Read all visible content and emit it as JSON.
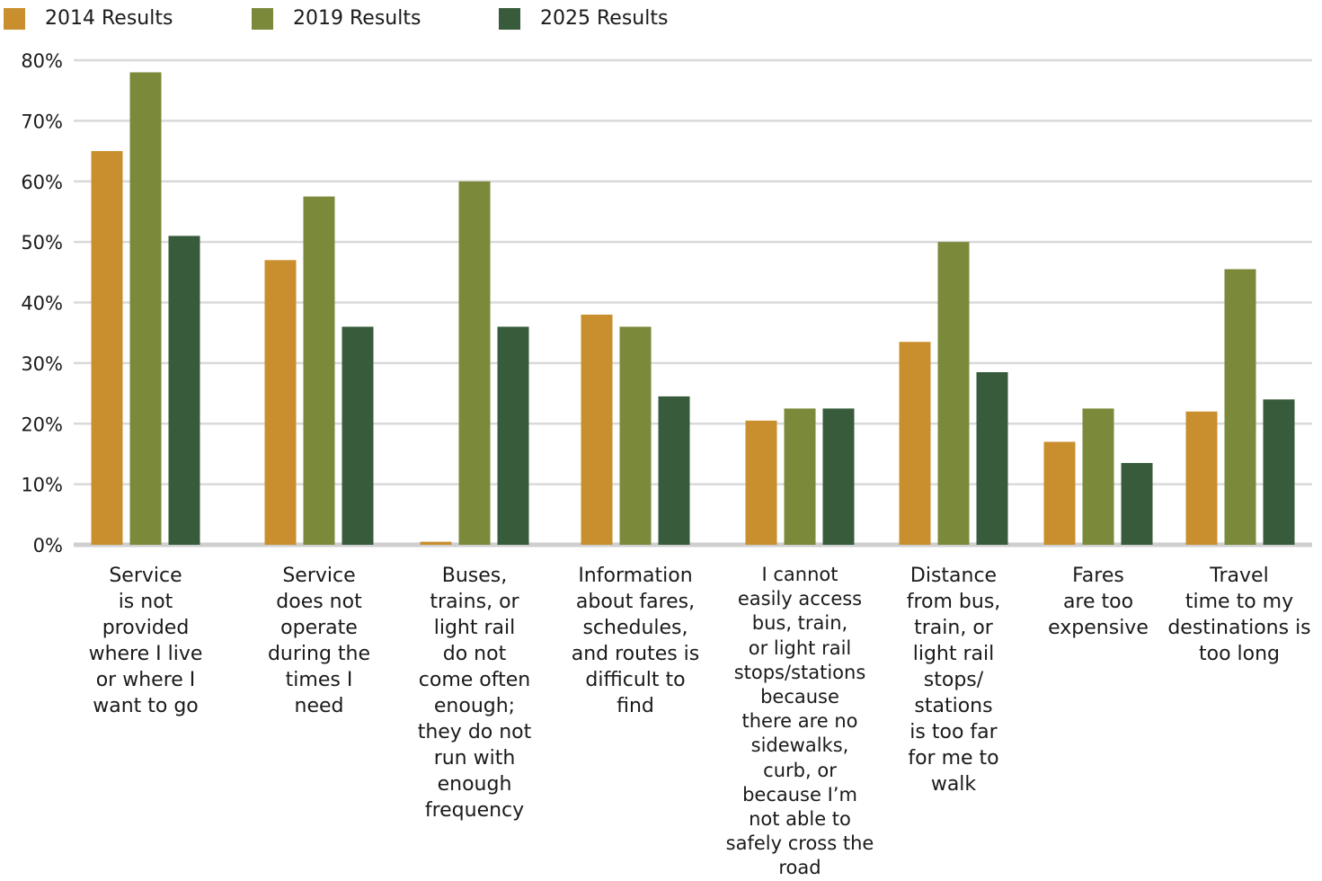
{
  "chart_data": {
    "type": "bar",
    "title": "",
    "xlabel": "",
    "ylabel": "",
    "ylim": [
      0,
      80
    ],
    "yticks": [
      "0%",
      "10%",
      "20%",
      "30%",
      "40%",
      "50%",
      "60%",
      "70%",
      "80%"
    ],
    "grid": true,
    "legend_position": "top-left",
    "categories": [
      "Service\nis not\nprovided\nwhere I live\nor where I\nwant to go",
      "Service\ndoes not\noperate\nduring the\ntimes I\nneed",
      "Buses,\ntrains, or\nlight rail\ndo not\ncome often\nenough;\nthey do not\nrun with\nenough\nfrequency",
      "Information\nabout fares,\nschedules,\nand routes is\ndifficult to\nfind",
      "I cannot\neasily access\nbus, train,\nor light rail\nstops/stations\nbecause\nthere are no\nsidewalks,\ncurb, or\nbecause I’m\nnot able to\nsafely cross the\nroad",
      "Distance\nfrom bus,\ntrain, or\nlight rail\nstops/\nstations\nis too far\nfor me to\nwalk",
      "Fares\nare too\nexpensive",
      "Travel\ntime to my\ndestinations is\ntoo long"
    ],
    "series": [
      {
        "name": "2014 Results",
        "color": "#c98f2e",
        "values": [
          65,
          47,
          0.5,
          38,
          20.5,
          33.5,
          17,
          22
        ]
      },
      {
        "name": "2019 Results",
        "color": "#7a8a3a",
        "values": [
          78,
          57.5,
          60,
          36,
          22.5,
          50,
          22.5,
          45.5
        ]
      },
      {
        "name": "2025 Results",
        "color": "#375b3b",
        "values": [
          51,
          36,
          36,
          24.5,
          22.5,
          28.5,
          13.5,
          24
        ]
      }
    ]
  }
}
